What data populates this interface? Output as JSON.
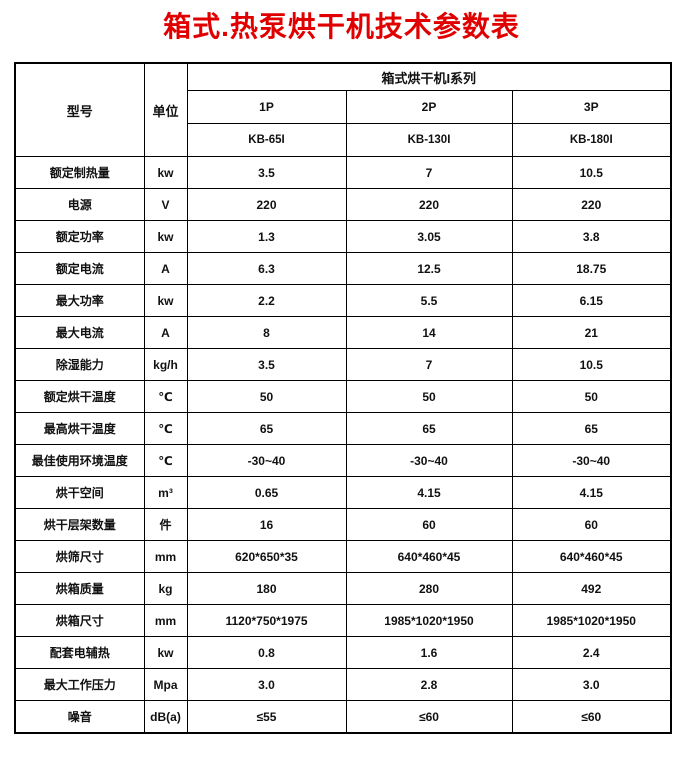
{
  "title": {
    "text": "箱式.热泵烘干机技术参数表",
    "color": "#e10000"
  },
  "table": {
    "corner_header": "型号",
    "unit_header": "单位",
    "series_header": "箱式烘干机I系列",
    "columns": [
      {
        "power": "1P",
        "model": "KB-65I"
      },
      {
        "power": "2P",
        "model": "KB-130I"
      },
      {
        "power": "3P",
        "model": "KB-180I"
      }
    ],
    "rows": [
      {
        "label": "额定制热量",
        "unit": "kw",
        "values": [
          "3.5",
          "7",
          "10.5"
        ]
      },
      {
        "label": "电源",
        "unit": "V",
        "values": [
          "220",
          "220",
          "220"
        ]
      },
      {
        "label": "额定功率",
        "unit": "kw",
        "values": [
          "1.3",
          "3.05",
          "3.8"
        ]
      },
      {
        "label": "额定电流",
        "unit": "A",
        "values": [
          "6.3",
          "12.5",
          "18.75"
        ]
      },
      {
        "label": "最大功率",
        "unit": "kw",
        "values": [
          "2.2",
          "5.5",
          "6.15"
        ]
      },
      {
        "label": "最大电流",
        "unit": "A",
        "values": [
          "8",
          "14",
          "21"
        ]
      },
      {
        "label": "除湿能力",
        "unit": "kg/h",
        "values": [
          "3.5",
          "7",
          "10.5"
        ]
      },
      {
        "label": "额定烘干温度",
        "unit": "℃",
        "values": [
          "50",
          "50",
          "50"
        ]
      },
      {
        "label": "最高烘干温度",
        "unit": "℃",
        "values": [
          "65",
          "65",
          "65"
        ]
      },
      {
        "label": "最佳使用环境温度",
        "unit": "℃",
        "values": [
          "-30~40",
          "-30~40",
          "-30~40"
        ]
      },
      {
        "label": "烘干空间",
        "unit": "m³",
        "values": [
          "0.65",
          "4.15",
          "4.15"
        ]
      },
      {
        "label": "烘干层架数量",
        "unit": "件",
        "values": [
          "16",
          "60",
          "60"
        ]
      },
      {
        "label": "烘筛尺寸",
        "unit": "mm",
        "values": [
          "620*650*35",
          "640*460*45",
          "640*460*45"
        ]
      },
      {
        "label": "烘箱质量",
        "unit": "kg",
        "values": [
          "180",
          "280",
          "492"
        ]
      },
      {
        "label": "烘箱尺寸",
        "unit": "mm",
        "values": [
          "1120*750*1975",
          "1985*1020*1950",
          "1985*1020*1950"
        ]
      },
      {
        "label": "配套电辅热",
        "unit": "kw",
        "values": [
          "0.8",
          "1.6",
          "2.4"
        ]
      },
      {
        "label": "最大工作压力",
        "unit": "Mpa",
        "values": [
          "3.0",
          "2.8",
          "3.0"
        ]
      },
      {
        "label": "噪音",
        "unit": "dB(a)",
        "values": [
          "≤55",
          "≤60",
          "≤60"
        ]
      }
    ]
  }
}
